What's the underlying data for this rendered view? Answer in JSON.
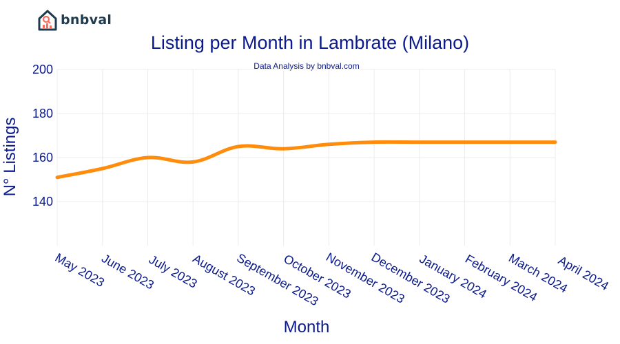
{
  "brand": {
    "name": "bnbval"
  },
  "chart_data": {
    "type": "line",
    "title": "Listing per Month in Lambrate (Milano)",
    "subtitle": "Data Analysis by bnbval.com",
    "xlabel": "Month",
    "ylabel": "N° Listings",
    "categories": [
      "May 2023",
      "June 2023",
      "July 2023",
      "August 2023",
      "September 2023",
      "October 2023",
      "November 2023",
      "December 2023",
      "January 2024",
      "February 2024",
      "March 2024",
      "April 2024"
    ],
    "series": [
      {
        "values": [
          151,
          155,
          160,
          158,
          165,
          164,
          166,
          167,
          167,
          167,
          167,
          167
        ]
      }
    ],
    "ylim": [
      120,
      200
    ],
    "yticks": [
      140,
      160,
      180,
      200
    ],
    "grid": true,
    "line_color": "#ff8c0a"
  }
}
